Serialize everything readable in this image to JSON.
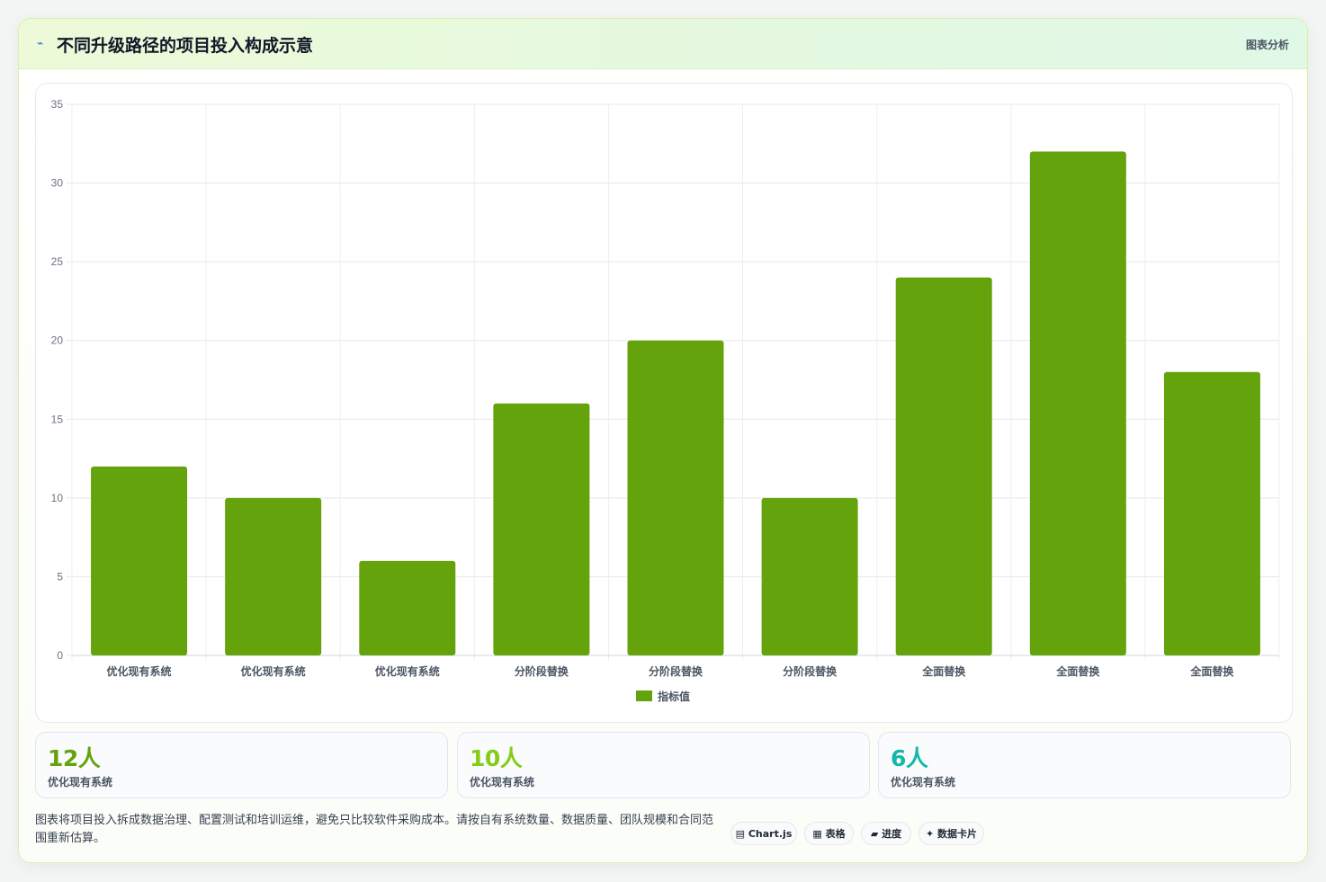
{
  "header": {
    "title": "不同升级路径的项目投入构成示意",
    "link_label": "图表分析",
    "icon": "sparkle-icon"
  },
  "chart_data": {
    "type": "bar",
    "categories": [
      "优化现有系统",
      "优化现有系统",
      "优化现有系统",
      "分阶段替换",
      "分阶段替换",
      "分阶段替换",
      "全面替换",
      "全面替换",
      "全面替换"
    ],
    "series": [
      {
        "name": "指标值",
        "values": [
          12,
          10,
          6,
          16,
          20,
          10,
          24,
          32,
          18
        ],
        "color": "#65a30d"
      }
    ],
    "ylim": [
      0,
      35
    ],
    "yticks": [
      0,
      5,
      10,
      15,
      20,
      25,
      30,
      35
    ],
    "grid": true,
    "legend": "bottom"
  },
  "stats": [
    {
      "value": "12人",
      "label": "优化现有系统",
      "color": "#65a30d"
    },
    {
      "value": "10人",
      "label": "优化现有系统",
      "color": "#84cc16"
    },
    {
      "value": "6人",
      "label": "优化现有系统",
      "color": "#14b8a6"
    }
  ],
  "footer": {
    "note": "图表将项目投入拆成数据治理、配置测试和培训运维，避免只比较软件采购成本。请按自有系统数量、数据质量、团队规模和合同范围重新估算。",
    "pills": [
      {
        "icon": "▤",
        "label": "Chart.js"
      },
      {
        "icon": "▦",
        "label": "表格"
      },
      {
        "icon": "▰",
        "label": "进度"
      },
      {
        "icon": "✦",
        "label": "数据卡片"
      }
    ]
  }
}
